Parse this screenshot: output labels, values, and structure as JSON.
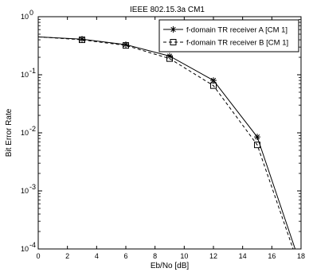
{
  "chart_data": {
    "type": "line",
    "title": "IEEE 802.15.3a CM1",
    "xlabel": "Eb/No [dB]",
    "ylabel": "Bit Error Rate",
    "xlim": [
      0,
      18
    ],
    "ylim": [
      0.0001,
      1
    ],
    "yscale": "log",
    "x_ticks": [
      0,
      2,
      4,
      6,
      8,
      10,
      12,
      14,
      16,
      18
    ],
    "y_ticks": [
      {
        "value": 0.0001,
        "base": "10",
        "exp": "-4"
      },
      {
        "value": 0.001,
        "base": "10",
        "exp": "-3"
      },
      {
        "value": 0.01,
        "base": "10",
        "exp": "-2"
      },
      {
        "value": 0.1,
        "base": "10",
        "exp": "-1"
      },
      {
        "value": 1,
        "base": "10",
        "exp": "0"
      }
    ],
    "grid": false,
    "legend_position": "top-right",
    "series": [
      {
        "name": "f-domain TR receiver A [CM 1]",
        "style": "solid",
        "marker": "star",
        "x": [
          0,
          3,
          6,
          9,
          12,
          15,
          18
        ],
        "y": [
          0.45,
          0.41,
          0.33,
          0.21,
          0.08,
          0.0085,
          5e-05
        ]
      },
      {
        "name": "f-domain TR receiver B [CM 1]",
        "style": "dashed",
        "marker": "square",
        "x": [
          0,
          3,
          6,
          9,
          12,
          15,
          18
        ],
        "y": [
          0.45,
          0.4,
          0.32,
          0.19,
          0.065,
          0.0062,
          4e-05
        ]
      }
    ]
  }
}
